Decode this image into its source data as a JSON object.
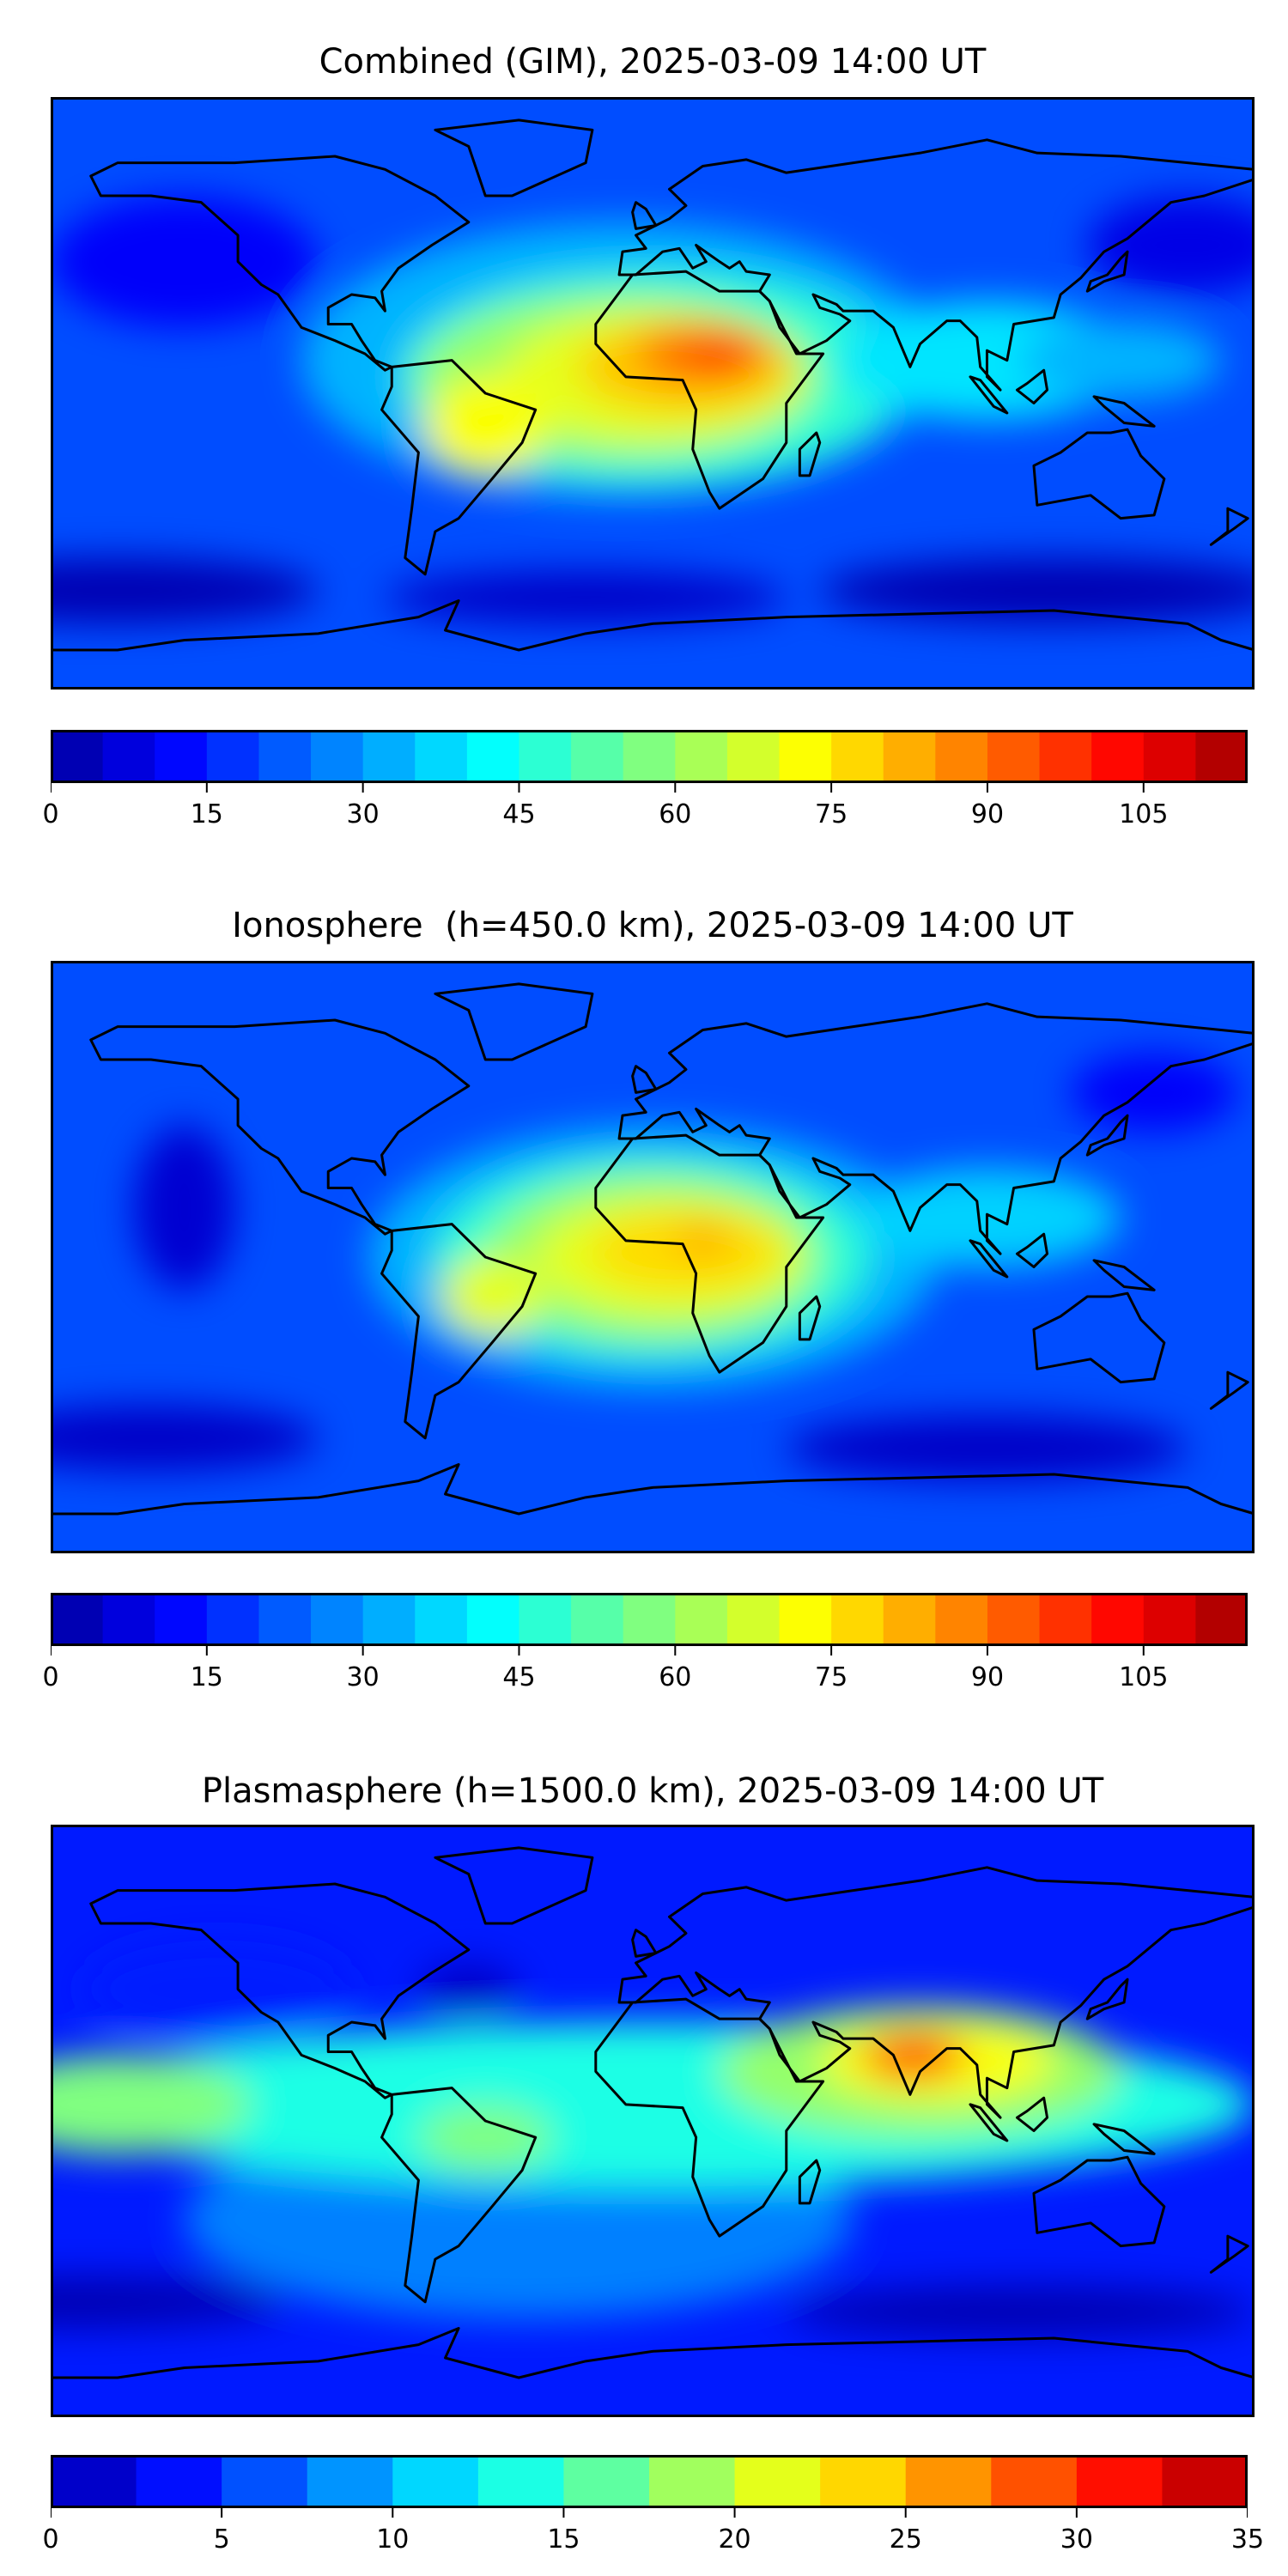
{
  "chart_data": [
    {
      "type": "heatmap",
      "title": "Combined (GIM), 2025-03-09 14:00 UT",
      "colorbar": {
        "min": 0,
        "max": 115,
        "step": 5,
        "ticks": [
          "0",
          "15",
          "30",
          "45",
          "60",
          "75",
          "90",
          "105"
        ]
      },
      "features": {
        "peak_region": "Africa / tropical Atlantic",
        "peak_level": 95
      }
    },
    {
      "type": "heatmap",
      "title": "Ionosphere  (h=450.0 km), 2025-03-09 14:00 UT",
      "colorbar": {
        "min": 0,
        "max": 115,
        "step": 5,
        "ticks": [
          "0",
          "15",
          "30",
          "45",
          "60",
          "75",
          "90",
          "105"
        ]
      },
      "features": {
        "peak_region": "Central Africa",
        "peak_level": 80
      }
    },
    {
      "type": "heatmap",
      "title": "Plasmasphere (h=1500.0 km), 2025-03-09 14:00 UT",
      "colorbar": {
        "min": 0,
        "max": 35,
        "step": 2.5,
        "ticks": [
          "0",
          "5",
          "10",
          "15",
          "20",
          "25",
          "30",
          "35"
        ]
      },
      "features": {
        "peak_region": "India",
        "peak_level": 27.5
      }
    }
  ]
}
